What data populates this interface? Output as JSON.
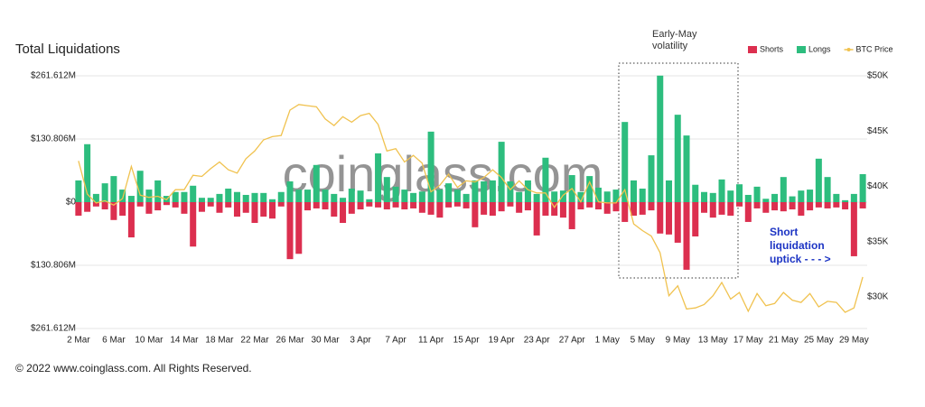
{
  "chart_data": {
    "type": "bar",
    "title": "Total Liquidations",
    "watermark": "coinglass.com",
    "footer": "© 2022 www.coinglass.com. All Rights Reserved.",
    "annotations": [
      [
        "Early-May",
        "volatility"
      ],
      [
        "Short",
        "liquidation",
        "uptick - - - >"
      ]
    ],
    "categories": [
      "2 Mar",
      null,
      null,
      null,
      "6 Mar",
      null,
      null,
      null,
      "10 Mar",
      null,
      null,
      null,
      "14 Mar",
      null,
      null,
      null,
      "18 Mar",
      null,
      null,
      null,
      "22 Mar",
      null,
      null,
      null,
      "26 Mar",
      null,
      null,
      null,
      "30 Mar",
      null,
      null,
      null,
      "3 Apr",
      null,
      null,
      null,
      "7 Apr",
      null,
      null,
      null,
      "11 Apr",
      null,
      null,
      null,
      "15 Apr",
      null,
      null,
      null,
      "19 Apr",
      null,
      null,
      null,
      "23 Apr",
      null,
      null,
      null,
      "27 Apr",
      null,
      null,
      null,
      "1 May",
      null,
      null,
      null,
      "5 May",
      null,
      null,
      null,
      "9 May",
      null,
      null,
      null,
      "13 May",
      null,
      null,
      null,
      "17 May",
      null,
      null,
      null,
      "21 May",
      null,
      null,
      null,
      "25 May",
      null,
      null,
      null,
      "29 May",
      null
    ],
    "series": [
      {
        "name": "Shorts",
        "color": "#dc2f4f",
        "values": [
          -28,
          -20,
          -9,
          -15,
          -37,
          -28,
          -73,
          -9,
          -24,
          -17,
          -6,
          -11,
          -24,
          -92,
          -20,
          -9,
          -22,
          -11,
          -30,
          -22,
          -43,
          -30,
          -34,
          -9,
          -118,
          -107,
          -17,
          -13,
          -15,
          -30,
          -43,
          -24,
          -15,
          -9,
          -11,
          -15,
          -11,
          -15,
          -13,
          -22,
          -26,
          -32,
          -11,
          -9,
          -13,
          -52,
          -26,
          -28,
          -19,
          -9,
          -22,
          -17,
          -69,
          -28,
          -28,
          -32,
          -56,
          -15,
          -11,
          -15,
          -24,
          -19,
          -41,
          -28,
          -26,
          -17,
          -65,
          -67,
          -84,
          -140,
          -71,
          -22,
          -32,
          -26,
          -28,
          -9,
          -41,
          -13,
          -22,
          -17,
          -19,
          -15,
          -28,
          -17,
          -11,
          -13,
          -11,
          -15,
          -112,
          -13
        ]
      },
      {
        "name": "Longs",
        "color": "#2dbd7e",
        "values": [
          45,
          120,
          17,
          39,
          54,
          26,
          13,
          65,
          26,
          45,
          13,
          21,
          21,
          34,
          9,
          9,
          17,
          28,
          21,
          15,
          19,
          19,
          6,
          21,
          43,
          26,
          26,
          77,
          26,
          17,
          9,
          28,
          24,
          6,
          101,
          52,
          32,
          26,
          19,
          22,
          146,
          26,
          39,
          26,
          17,
          45,
          43,
          45,
          125,
          43,
          21,
          45,
          17,
          92,
          22,
          24,
          56,
          21,
          54,
          30,
          22,
          26,
          166,
          45,
          28,
          97,
          262,
          45,
          181,
          138,
          36,
          21,
          19,
          47,
          24,
          37,
          15,
          32,
          7,
          17,
          52,
          12,
          24,
          26,
          90,
          52,
          17,
          4,
          17,
          58
        ]
      },
      {
        "name": "BTC Price",
        "color": "#f0c24f",
        "type": "line",
        "axis": "y2",
        "values": [
          42300,
          39300,
          38500,
          38700,
          38300,
          38900,
          41800,
          39200,
          39000,
          39100,
          38800,
          39700,
          39700,
          41000,
          40900,
          41600,
          42200,
          41500,
          41200,
          42500,
          43200,
          44200,
          44500,
          44600,
          46900,
          47400,
          47300,
          47200,
          46100,
          45500,
          46300,
          45800,
          46400,
          46600,
          45600,
          43200,
          43400,
          42200,
          42800,
          42100,
          39500,
          40100,
          41100,
          39900,
          40500,
          40400,
          40800,
          41500,
          40800,
          39700,
          40500,
          39700,
          39400,
          39400,
          38100,
          39200,
          39800,
          38600,
          40400,
          38600,
          38500,
          38500,
          39700,
          36600,
          36000,
          35500,
          34000,
          30100,
          31000,
          28900,
          29000,
          29300,
          30100,
          31300,
          29800,
          30400,
          28700,
          30300,
          29200,
          29400,
          30400,
          29700,
          29500,
          30300,
          29100,
          29600,
          29500,
          28600,
          29000,
          31800
        ]
      }
    ],
    "ylim": [
      -261.612,
      261.612
    ],
    "yticks": [
      {
        "value": 261.612,
        "label": "$261.612M"
      },
      {
        "value": 130.806,
        "label": "$130.806M"
      },
      {
        "value": 0,
        "label": "$0"
      },
      {
        "value": -130.806,
        "label": "$130.806M"
      },
      {
        "value": -261.612,
        "label": "$261.612M"
      }
    ],
    "y2lim": [
      27140,
      50000
    ],
    "y2ticks": [
      {
        "value": 50000,
        "label": "$50K"
      },
      {
        "value": 45000,
        "label": "$45K"
      },
      {
        "value": 40000,
        "label": "$40K"
      },
      {
        "value": 35000,
        "label": "$35K"
      },
      {
        "value": 30000,
        "label": "$30K"
      }
    ],
    "grid": true,
    "legend": "top-right"
  }
}
